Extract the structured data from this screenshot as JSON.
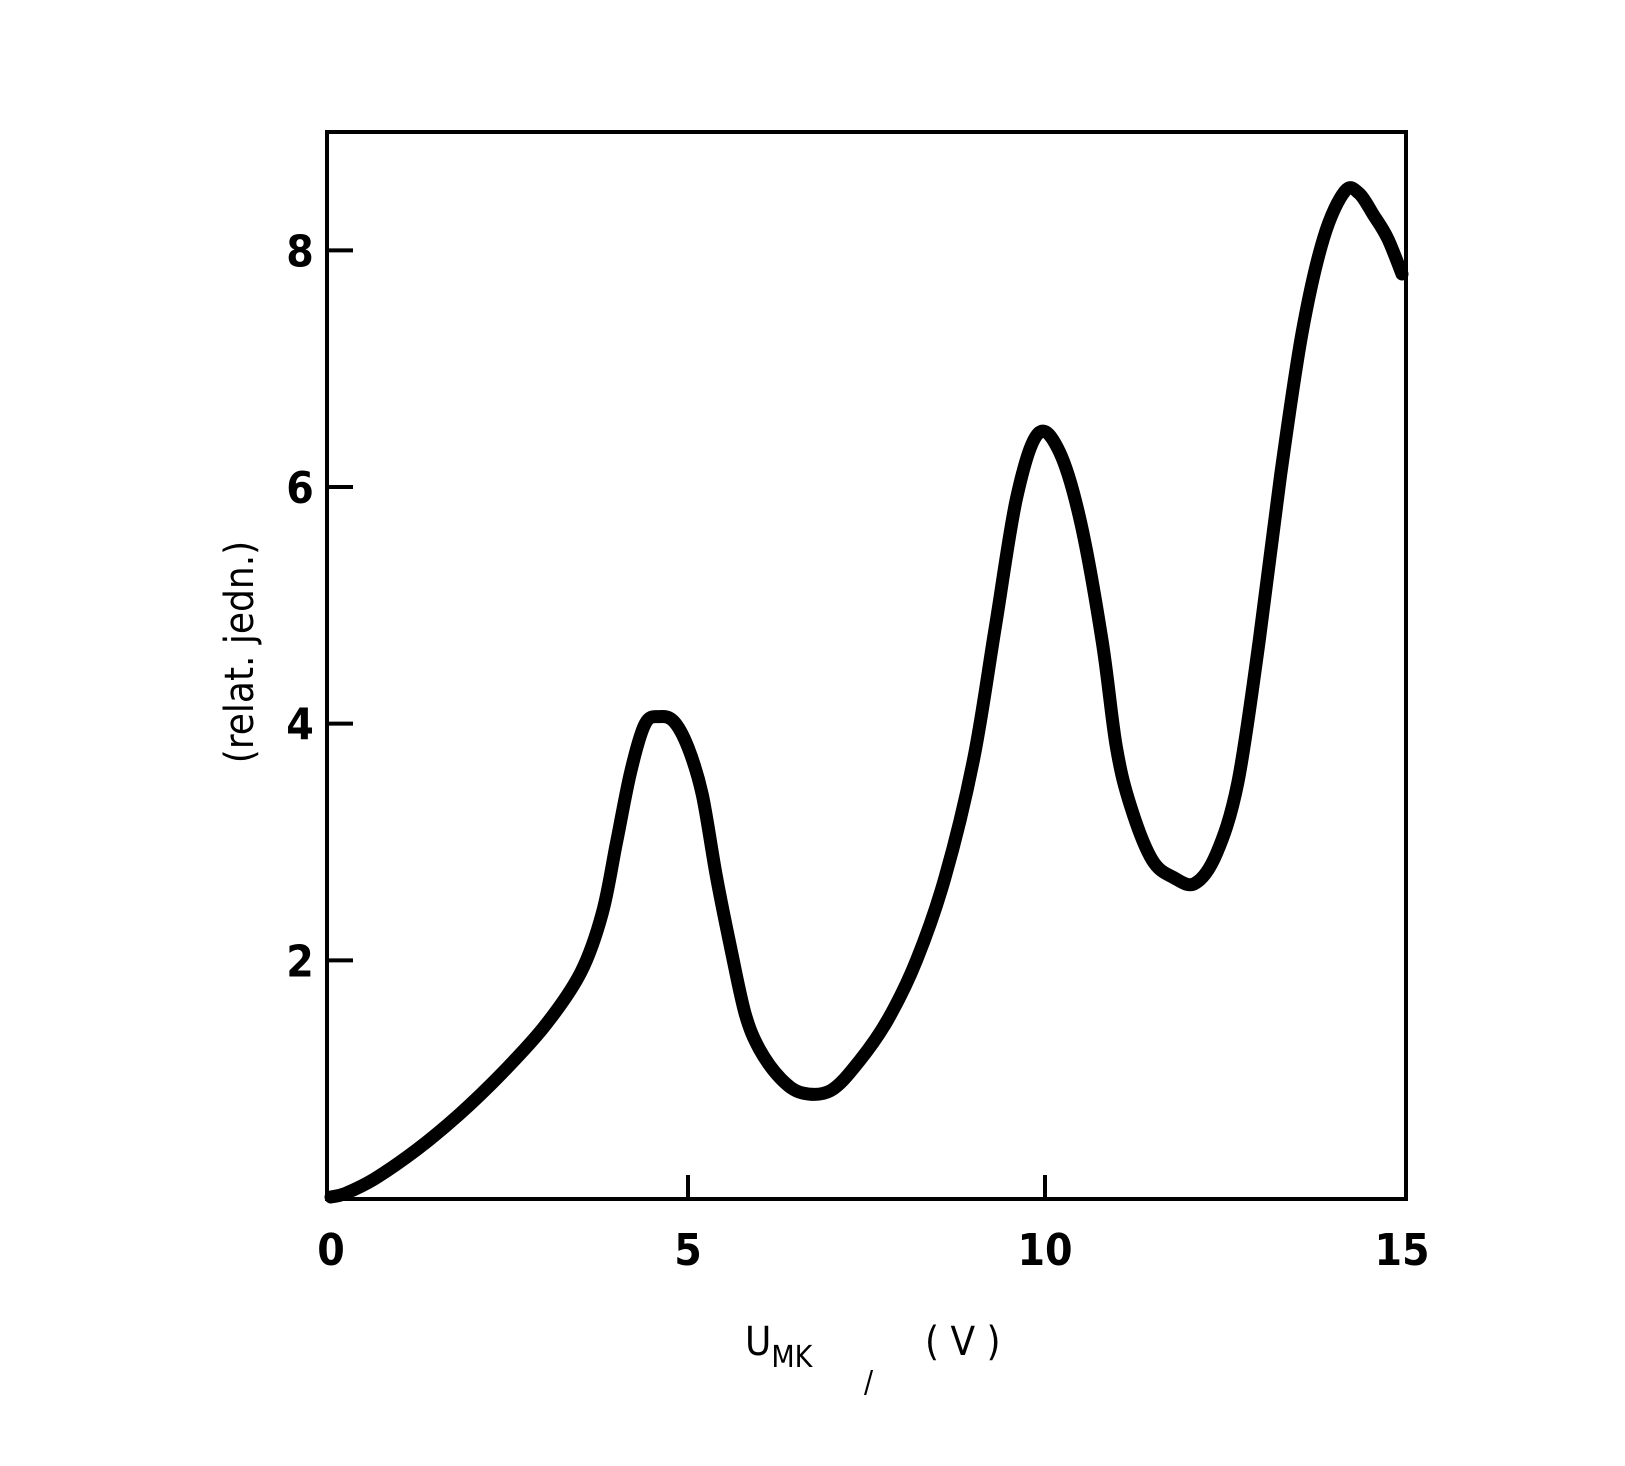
{
  "chart_data": {
    "type": "line",
    "title": "",
    "xlabel": "U",
    "xlabel_sub": "MK",
    "xlabel_mark": "/",
    "xlabel_unit": "( V )",
    "ylabel": "(relat. jedn.)",
    "xlim": [
      0,
      15
    ],
    "ylim": [
      0,
      9
    ],
    "x_ticks": [
      0,
      5,
      10,
      15
    ],
    "x_tick_labels": [
      "0",
      "5",
      "10",
      "15"
    ],
    "y_ticks": [
      2,
      4,
      6,
      8
    ],
    "y_tick_labels": [
      "2",
      "4",
      "6",
      "8"
    ],
    "grid": false,
    "line_color": "#000000",
    "series": [
      {
        "x": [
          0.0,
          0.2,
          0.6,
          1.2,
          1.8,
          2.4,
          3.0,
          3.5,
          3.8,
          4.0,
          4.2,
          4.4,
          4.6,
          4.8,
          5.0,
          5.2,
          5.4,
          5.6,
          5.8,
          6.0,
          6.3,
          6.6,
          7.0,
          7.4,
          7.8,
          8.2,
          8.6,
          9.0,
          9.3,
          9.6,
          9.9,
          10.2,
          10.5,
          10.8,
          11.0,
          11.2,
          11.5,
          11.8,
          12.1,
          12.4,
          12.7,
          13.0,
          13.3,
          13.6,
          13.9,
          14.2,
          14.4,
          14.6,
          14.8,
          15.0
        ],
        "y": [
          0.0,
          0.03,
          0.15,
          0.4,
          0.7,
          1.05,
          1.45,
          1.9,
          2.4,
          3.0,
          3.6,
          4.0,
          4.06,
          4.02,
          3.8,
          3.4,
          2.7,
          2.1,
          1.55,
          1.25,
          1.0,
          0.88,
          0.9,
          1.15,
          1.5,
          2.0,
          2.7,
          3.7,
          4.8,
          5.9,
          6.45,
          6.3,
          5.7,
          4.7,
          3.8,
          3.3,
          2.85,
          2.7,
          2.65,
          2.9,
          3.5,
          4.7,
          6.1,
          7.3,
          8.1,
          8.5,
          8.48,
          8.3,
          8.1,
          7.8
        ]
      }
    ]
  }
}
